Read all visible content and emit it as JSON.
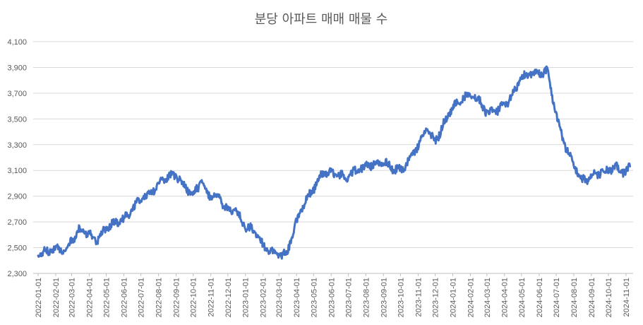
{
  "chart_data": {
    "type": "line",
    "title": "분당 아파트 매매 매물 수",
    "xlabel": "",
    "ylabel": "",
    "ylim": [
      2300,
      4100
    ],
    "y_ticks": [
      2300,
      2500,
      2700,
      2900,
      3100,
      3300,
      3500,
      3700,
      3900,
      4100
    ],
    "y_tick_labels": [
      "2,300",
      "2,500",
      "2,700",
      "2,900",
      "3,100",
      "3,300",
      "3,500",
      "3,700",
      "3,900",
      "4,100"
    ],
    "x_tick_labels": [
      "2022-01-01",
      "2022-02-01",
      "2022-03-01",
      "2022-04-01",
      "2022-05-01",
      "2022-06-01",
      "2022-07-01",
      "2022-08-01",
      "2022-09-01",
      "2022-10-01",
      "2022-11-01",
      "2022-12-01",
      "2023-01-01",
      "2023-02-01",
      "2023-03-01",
      "2023-04-01",
      "2023-05-01",
      "2023-06-01",
      "2023-07-01",
      "2023-08-01",
      "2023-09-01",
      "2023-10-01",
      "2023-11-01",
      "2023-12-01",
      "2024-01-01",
      "2024-02-01",
      "2024-03-01",
      "2024-04-01",
      "2024-05-01",
      "2024-06-01",
      "2024-07-01",
      "2024-08-01",
      "2024-09-01",
      "2024-10-01",
      "2024-11-01"
    ],
    "grid": true,
    "legend": "none",
    "line_color": "#4472C4",
    "series": [
      {
        "x": [
          "2022-01-01",
          "2022-01-15",
          "2022-02-01",
          "2022-02-15",
          "2022-03-01",
          "2022-03-15",
          "2022-04-01",
          "2022-04-15",
          "2022-05-01",
          "2022-05-15",
          "2022-06-01",
          "2022-06-15",
          "2022-07-01",
          "2022-07-15",
          "2022-08-01",
          "2022-08-15",
          "2022-09-01",
          "2022-09-15",
          "2022-10-01",
          "2022-10-15",
          "2022-11-01",
          "2022-11-15",
          "2022-12-01",
          "2022-12-15",
          "2023-01-01",
          "2023-01-15",
          "2023-02-01",
          "2023-02-15",
          "2023-03-01",
          "2023-03-15",
          "2023-04-01",
          "2023-04-15",
          "2023-05-01",
          "2023-05-15",
          "2023-06-01",
          "2023-06-15",
          "2023-07-01",
          "2023-07-15",
          "2023-08-01",
          "2023-08-15",
          "2023-09-01",
          "2023-09-15",
          "2023-10-01",
          "2023-10-15",
          "2023-11-01",
          "2023-11-15",
          "2023-12-01",
          "2023-12-15",
          "2024-01-01",
          "2024-01-15",
          "2024-02-01",
          "2024-02-15",
          "2024-03-01",
          "2024-03-15",
          "2024-04-01",
          "2024-04-15",
          "2024-05-01",
          "2024-05-15",
          "2024-06-01",
          "2024-06-15",
          "2024-07-01",
          "2024-07-15",
          "2024-08-01",
          "2024-08-15",
          "2024-09-01",
          "2024-09-15",
          "2024-10-01",
          "2024-10-15",
          "2024-11-01",
          "2024-11-08"
        ],
        "values": [
          2440,
          2470,
          2490,
          2470,
          2560,
          2640,
          2600,
          2560,
          2650,
          2690,
          2720,
          2790,
          2880,
          2910,
          2990,
          3050,
          3060,
          2980,
          2920,
          3010,
          2890,
          2900,
          2780,
          2800,
          2660,
          2640,
          2510,
          2480,
          2440,
          2460,
          2700,
          2850,
          2960,
          3070,
          3080,
          3060,
          3050,
          3100,
          3130,
          3150,
          3170,
          3120,
          3100,
          3170,
          3300,
          3420,
          3320,
          3450,
          3590,
          3650,
          3700,
          3650,
          3550,
          3560,
          3600,
          3690,
          3820,
          3850,
          3850,
          3880,
          3540,
          3310,
          3150,
          3020,
          3050,
          3080,
          3100,
          3120,
          3080,
          3150
        ]
      }
    ]
  }
}
